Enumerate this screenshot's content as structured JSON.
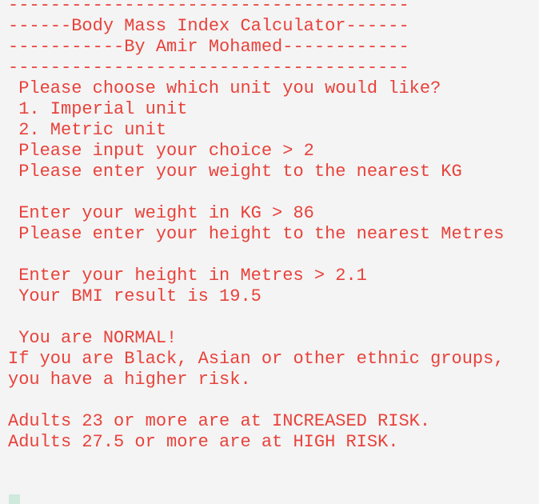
{
  "terminal": {
    "blocks": [
      {
        "lines": [
          "--------------------------------------",
          "------Body Mass Index Calculator------",
          "-----------By Amir Mohamed------------",
          "--------------------------------------",
          " Please choose which unit you would like?",
          " 1. Imperial unit",
          " 2. Metric unit",
          " Please input your choice > 2",
          " Please enter your weight to the nearest KG"
        ]
      },
      {
        "lines": [
          " Enter your weight in KG > 86",
          " Please enter your height to the nearest Metres"
        ]
      },
      {
        "lines": [
          " Enter your height in Metres > 2.1",
          " Your BMI result is 19.5"
        ]
      },
      {
        "lines": [
          " You are NORMAL!",
          "If you are Black, Asian or other ethnic groups,",
          "you have a higher risk."
        ]
      },
      {
        "lines": [
          "Adults 23 or more are at INCREASED RISK.",
          "Adults 27.5 or more are at HIGH RISK."
        ]
      }
    ]
  }
}
